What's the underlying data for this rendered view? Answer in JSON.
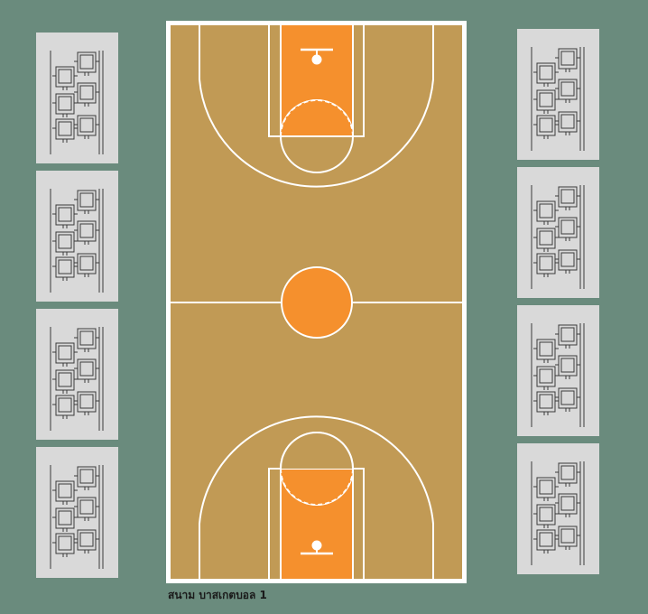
{
  "court": {
    "label": "สนาม บาสเกตบอล 1",
    "colors": {
      "background": "#6a8b7d",
      "floor": "#c19a55",
      "key": "#f5902d",
      "lines": "#ffffff",
      "seat_panel": "#d9d9d9",
      "seat_stroke": "#3a3a3a"
    },
    "seating_sections": {
      "left": [
        "bleacher-1",
        "bleacher-2",
        "bleacher-3",
        "bleacher-4"
      ],
      "right": [
        "bleacher-5",
        "bleacher-6",
        "bleacher-7",
        "bleacher-8"
      ]
    }
  }
}
